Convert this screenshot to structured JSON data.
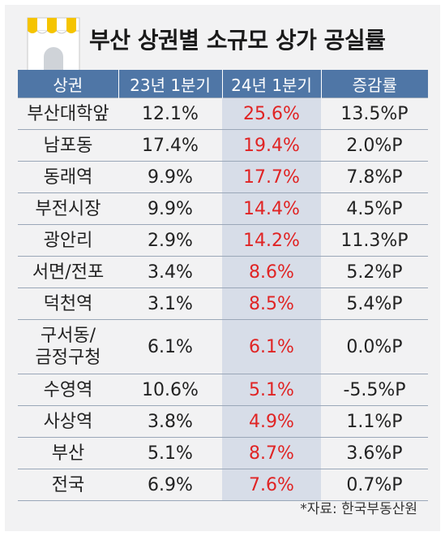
{
  "title": "부산 상권별 소규모 상가 공실률",
  "colors": {
    "header_bg": "#4f76a6",
    "highlight_bg": "#d7dde8",
    "highlight_text": "#e02424"
  },
  "headers": [
    "상권",
    "23년 1분기",
    "24년 1분기",
    "증감률"
  ],
  "rows": [
    {
      "area": "부산대학앞",
      "q23": "12.1%",
      "q24": "25.6%",
      "change": "13.5%P"
    },
    {
      "area": "남포동",
      "q23": "17.4%",
      "q24": "19.4%",
      "change": "2.0%P"
    },
    {
      "area": "동래역",
      "q23": "9.9%",
      "q24": "17.7%",
      "change": "7.8%P"
    },
    {
      "area": "부전시장",
      "q23": "9.9%",
      "q24": "14.4%",
      "change": "4.5%P"
    },
    {
      "area": "광안리",
      "q23": "2.9%",
      "q24": "14.2%",
      "change": "11.3%P"
    },
    {
      "area": "서면/전포",
      "q23": "3.4%",
      "q24": "8.6%",
      "change": "5.2%P"
    },
    {
      "area": "덕천역",
      "q23": "3.1%",
      "q24": "8.5%",
      "change": "5.4%P"
    },
    {
      "area": "구서동/",
      "area2": "금정구청",
      "q23": "6.1%",
      "q24": "6.1%",
      "change": "0.0%P"
    },
    {
      "area": "수영역",
      "q23": "10.6%",
      "q24": "5.1%",
      "change": "-5.5%P"
    },
    {
      "area": "사상역",
      "q23": "3.8%",
      "q24": "4.9%",
      "change": "1.1%P"
    },
    {
      "area": "부산",
      "q23": "5.1%",
      "q24": "8.7%",
      "change": "3.6%P"
    },
    {
      "area": "전국",
      "q23": "6.9%",
      "q24": "7.6%",
      "change": "0.7%P"
    }
  ],
  "source": "*자료: 한국부동산원"
}
